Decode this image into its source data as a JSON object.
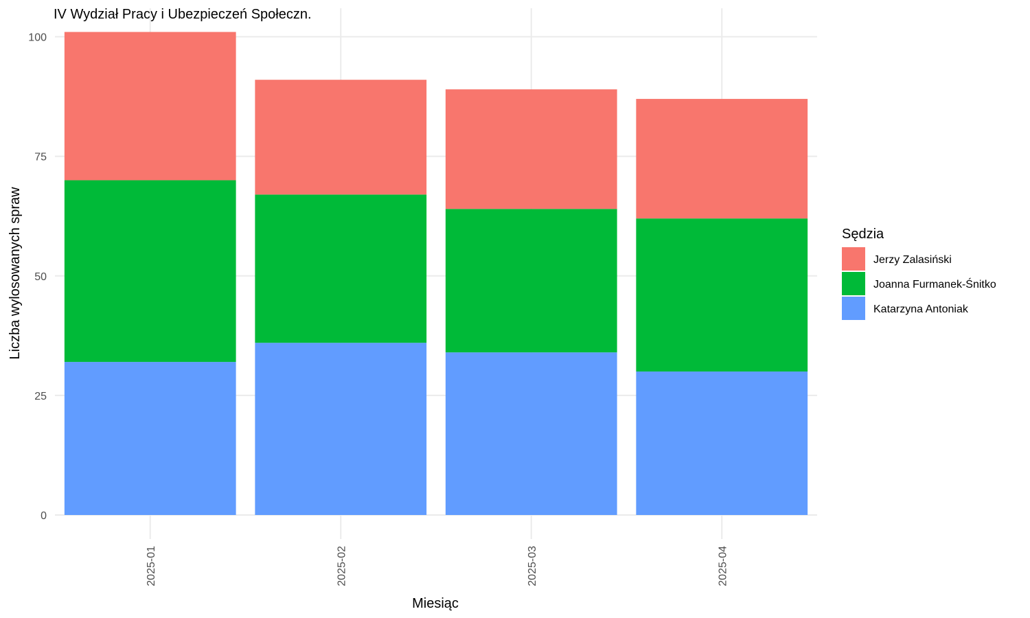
{
  "chart_data": {
    "type": "bar",
    "stacked": true,
    "title": "IV Wydział Pracy i Ubezpieczeń Społeczn.",
    "xlabel": "Miesiąc",
    "ylabel": "Liczba wylosowanych spraw",
    "categories": [
      "2025-01",
      "2025-02",
      "2025-03",
      "2025-04"
    ],
    "ylim": [
      0,
      101
    ],
    "yticks": [
      0,
      25,
      50,
      75,
      100
    ],
    "grid": true,
    "legend": {
      "title": "Sędzia",
      "position": "right"
    },
    "series": [
      {
        "name": "Katarzyna Antoniak",
        "color": "#619CFF",
        "values": [
          32,
          36,
          34,
          30
        ]
      },
      {
        "name": "Joanna Furmanek-Śnitko",
        "color": "#00BA38",
        "values": [
          38,
          31,
          30,
          32
        ]
      },
      {
        "name": "Jerzy Zalasiński",
        "color": "#F8766D",
        "values": [
          31,
          24,
          25,
          25
        ]
      }
    ],
    "legend_order": [
      "Jerzy Zalasiński",
      "Joanna Furmanek-Śnitko",
      "Katarzyna Antoniak"
    ]
  }
}
